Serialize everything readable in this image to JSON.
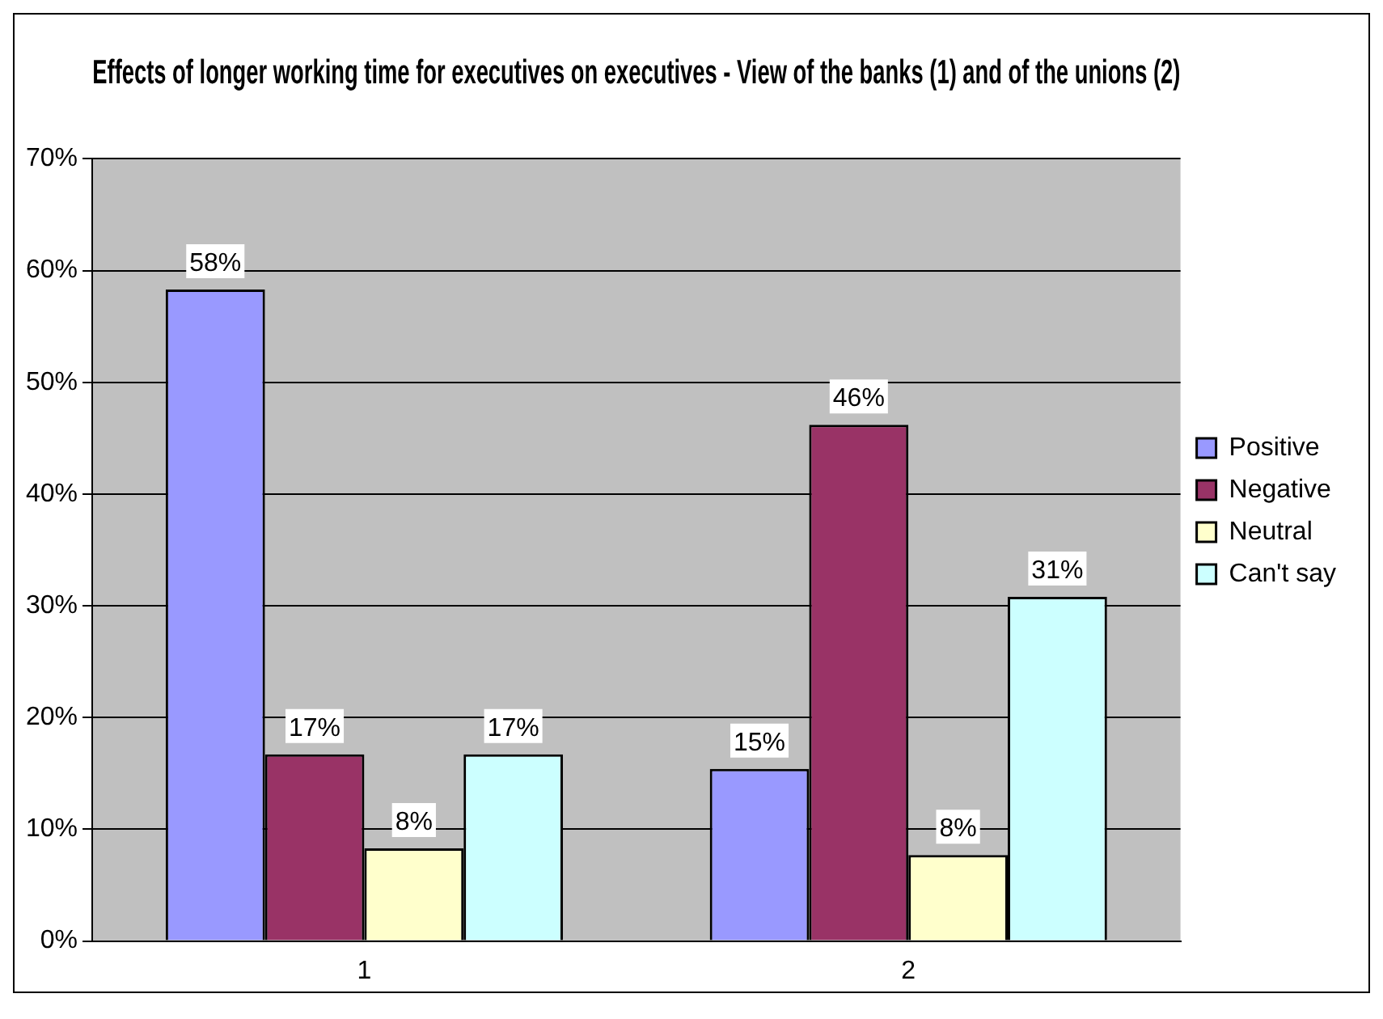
{
  "chart_data": {
    "type": "bar",
    "title": "Effects of longer working time for executives on executives - View of the banks (1) and of the unions (2)",
    "categories": [
      "1",
      "2"
    ],
    "series": [
      {
        "name": "Positive",
        "color": "#9999ff",
        "values": [
          58.3,
          15.4
        ],
        "value_labels": [
          "58%",
          "15%"
        ]
      },
      {
        "name": "Negative",
        "color": "#993366",
        "values": [
          16.7,
          46.2
        ],
        "value_labels": [
          "17%",
          "46%"
        ]
      },
      {
        "name": "Neutral",
        "color": "#ffffcc",
        "values": [
          8.3,
          7.7
        ],
        "value_labels": [
          "8%",
          "8%"
        ]
      },
      {
        "name": "Can't say",
        "color": "#ccffff",
        "values": [
          16.7,
          30.8
        ],
        "value_labels": [
          "17%",
          "31%"
        ]
      }
    ],
    "ylim": [
      0,
      70
    ],
    "yticks": [
      {
        "value": 0,
        "label": "0%"
      },
      {
        "value": 10,
        "label": "10%"
      },
      {
        "value": 20,
        "label": "20%"
      },
      {
        "value": 30,
        "label": "30%"
      },
      {
        "value": 40,
        "label": "40%"
      },
      {
        "value": 50,
        "label": "50%"
      },
      {
        "value": 60,
        "label": "60%"
      },
      {
        "value": 70,
        "label": "70%"
      }
    ],
    "grid": "y",
    "legend": "right"
  }
}
